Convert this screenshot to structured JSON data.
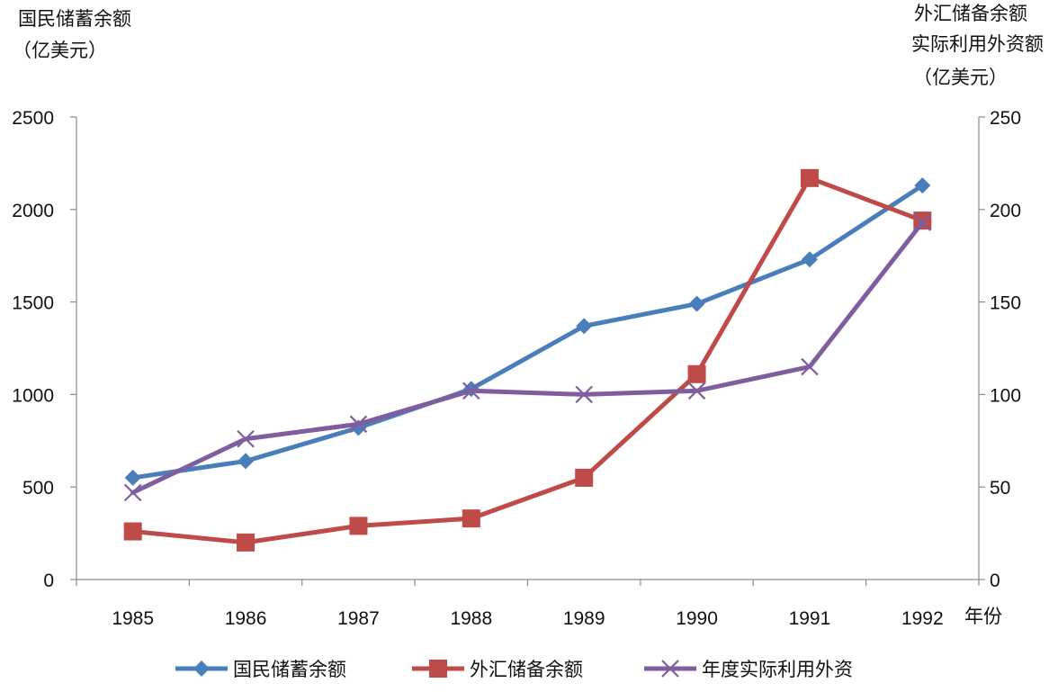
{
  "chart_data": {
    "type": "line",
    "categories": [
      "1985",
      "1986",
      "1987",
      "1988",
      "1989",
      "1990",
      "1991",
      "1992"
    ],
    "xlabel": "年份",
    "y_left": {
      "label_line1": "国民储蓄余额",
      "label_line2": "（亿美元）",
      "range": [
        0,
        2500
      ],
      "ticks": [
        "0",
        "500",
        "1000",
        "1500",
        "2000",
        "2500"
      ]
    },
    "y_right": {
      "label_line1": "外汇储备余额",
      "label_line2": "实际利用外资额",
      "label_line3": "（亿美元）",
      "range": [
        0,
        250
      ],
      "ticks": [
        "0",
        "50",
        "100",
        "150",
        "200",
        "250"
      ]
    },
    "grid": false,
    "legend_position": "bottom",
    "series": [
      {
        "name": "国民储蓄余额",
        "axis": "left",
        "color": "#4a7ebb",
        "marker": "diamond",
        "values": [
          550,
          640,
          820,
          1030,
          1370,
          1490,
          1730,
          2130
        ]
      },
      {
        "name": "外汇储备余额",
        "axis": "right",
        "color": "#be4b48",
        "marker": "square",
        "values": [
          26,
          20,
          29,
          33,
          55,
          111,
          217,
          194
        ]
      },
      {
        "name": "年度实际利用外资",
        "axis": "right",
        "color": "#7e5e9e",
        "marker": "x",
        "values": [
          47,
          76,
          84,
          102,
          100,
          102,
          115,
          193
        ]
      }
    ]
  }
}
